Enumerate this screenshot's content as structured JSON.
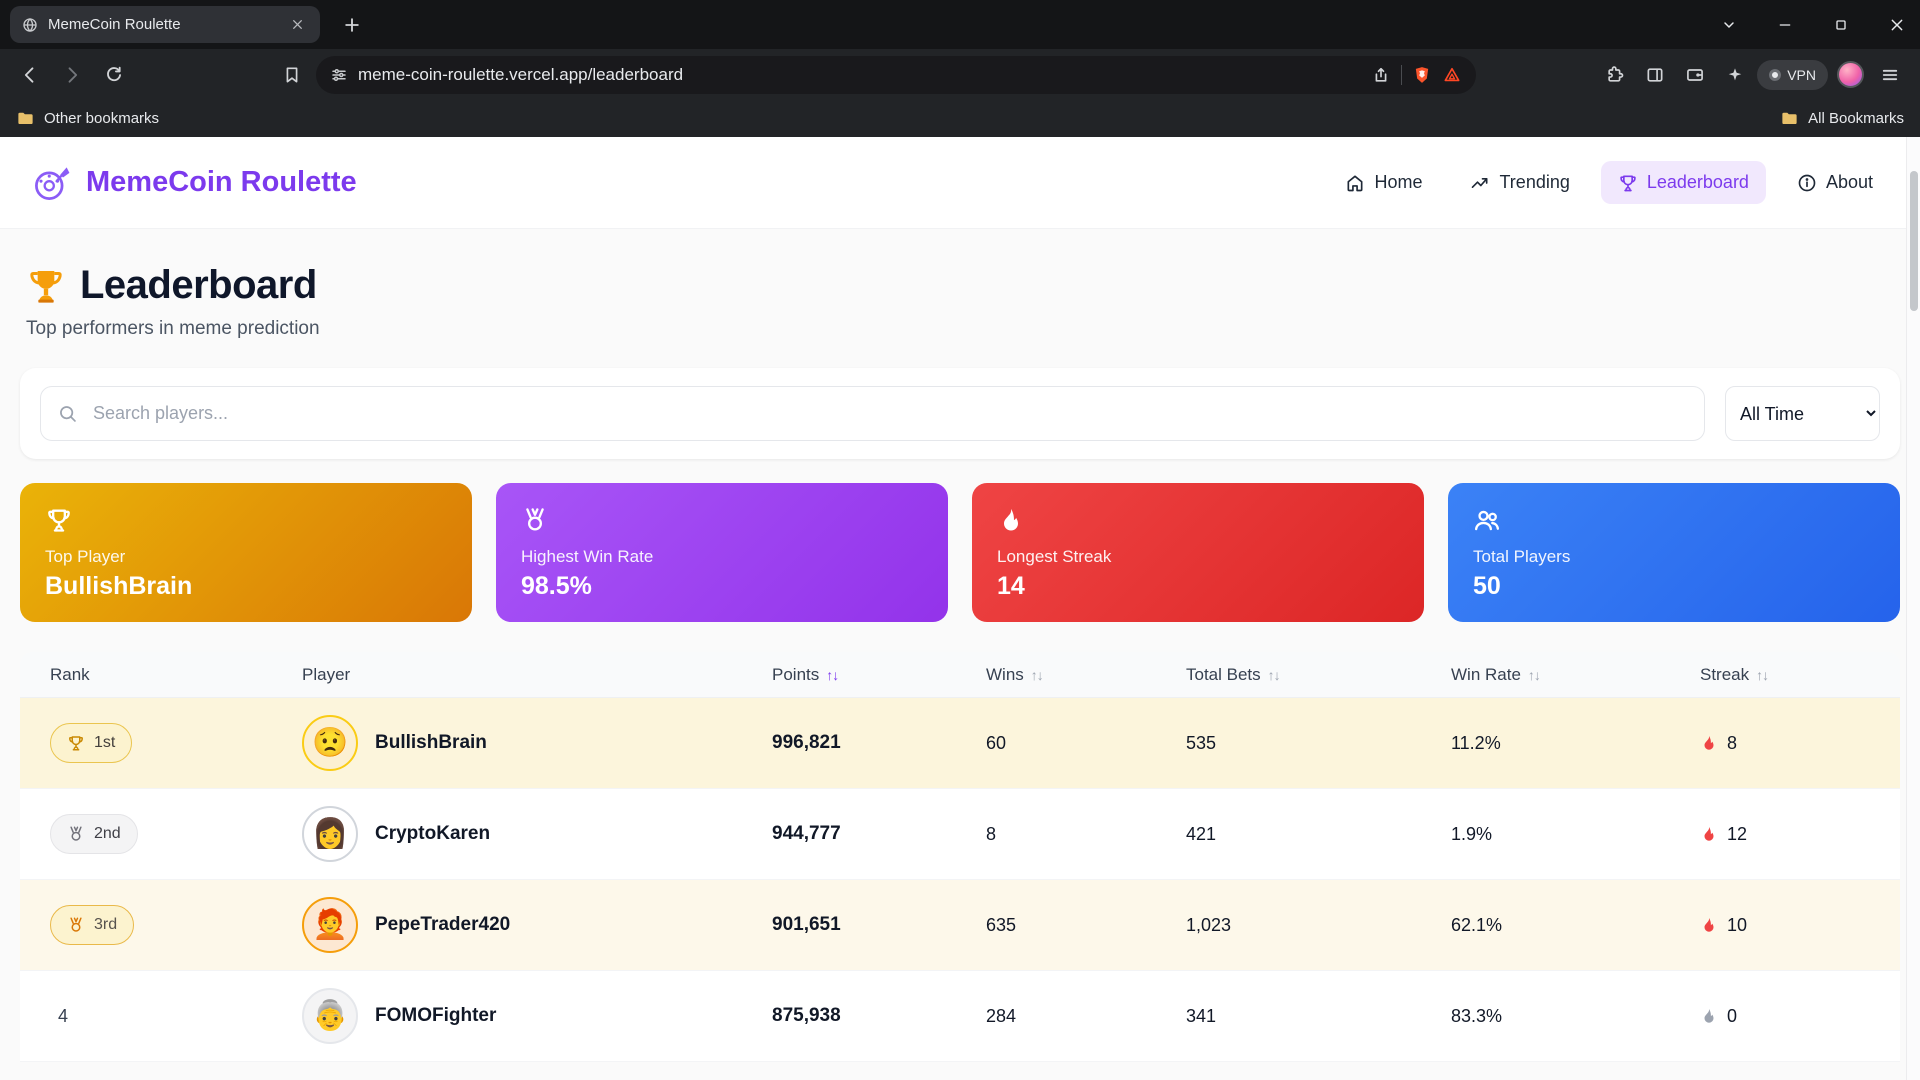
{
  "browser": {
    "tab_title": "MemeCoin Roulette",
    "url": "meme-coin-roulette.vercel.app/leaderboard",
    "bookmarks_bar": {
      "left_label": "Other bookmarks",
      "right_label": "All Bookmarks"
    },
    "vpn_label": "VPN"
  },
  "site": {
    "brand": "MemeCoin Roulette",
    "nav": [
      {
        "label": "Home",
        "icon": "home",
        "active": false
      },
      {
        "label": "Trending",
        "icon": "trending",
        "active": false
      },
      {
        "label": "Leaderboard",
        "icon": "trophy",
        "active": true
      },
      {
        "label": "About",
        "icon": "info",
        "active": false
      }
    ]
  },
  "page": {
    "title": "Leaderboard",
    "subtitle": "Top performers in meme prediction",
    "search_placeholder": "Search players...",
    "time_filter_selected": "All Time"
  },
  "stats": [
    {
      "label": "Top Player",
      "value": "BullishBrain",
      "icon": "trophy",
      "color_from": "#eab308",
      "color_to": "#d97706"
    },
    {
      "label": "Highest Win Rate",
      "value": "98.5%",
      "icon": "medal",
      "color_from": "#a855f7",
      "color_to": "#9333ea"
    },
    {
      "label": "Longest Streak",
      "value": "14",
      "icon": "flame",
      "color_from": "#ef4444",
      "color_to": "#dc2626"
    },
    {
      "label": "Total Players",
      "value": "50",
      "icon": "users",
      "color_from": "#3b82f6",
      "color_to": "#2563eb"
    }
  ],
  "table": {
    "columns": [
      {
        "label": "Rank",
        "sortable": false,
        "active": false
      },
      {
        "label": "Player",
        "sortable": false,
        "active": false
      },
      {
        "label": "Points",
        "sortable": true,
        "active": true
      },
      {
        "label": "Wins",
        "sortable": true,
        "active": false
      },
      {
        "label": "Total Bets",
        "sortable": true,
        "active": false
      },
      {
        "label": "Win Rate",
        "sortable": true,
        "active": false
      },
      {
        "label": "Streak",
        "sortable": true,
        "active": false
      }
    ],
    "rows": [
      {
        "rank_label": "1st",
        "rank_style": "gold",
        "row_highlight": "gold",
        "avatar": "😟",
        "avatar_ring": "#facc15",
        "avatar_bg": "#fcf0d2",
        "player": "BullishBrain",
        "points": "996,821",
        "wins": "60",
        "total_bets": "535",
        "win_rate": "11.2%",
        "streak": "8",
        "streak_hot": true
      },
      {
        "rank_label": "2nd",
        "rank_style": "silver",
        "row_highlight": "none",
        "avatar": "👩",
        "avatar_ring": "#d1d5db",
        "avatar_bg": "#ffffff",
        "player": "CryptoKaren",
        "points": "944,777",
        "wins": "8",
        "total_bets": "421",
        "win_rate": "1.9%",
        "streak": "12",
        "streak_hot": true
      },
      {
        "rank_label": "3rd",
        "rank_style": "bronze",
        "row_highlight": "bronze",
        "avatar": "🧑‍🦰",
        "avatar_ring": "#f59e0b",
        "avatar_bg": "#fde8d2",
        "player": "PepeTrader420",
        "points": "901,651",
        "wins": "635",
        "total_bets": "1,023",
        "win_rate": "62.1%",
        "streak": "10",
        "streak_hot": true
      },
      {
        "rank_label": "4",
        "rank_style": "plain",
        "row_highlight": "none",
        "avatar": "👵",
        "avatar_ring": "#e5e7eb",
        "avatar_bg": "#f4f4f5",
        "player": "FOMOFighter",
        "points": "875,938",
        "wins": "284",
        "total_bets": "341",
        "win_rate": "83.3%",
        "streak": "0",
        "streak_hot": false
      }
    ]
  },
  "colors": {
    "accent": "#7c3aed"
  }
}
